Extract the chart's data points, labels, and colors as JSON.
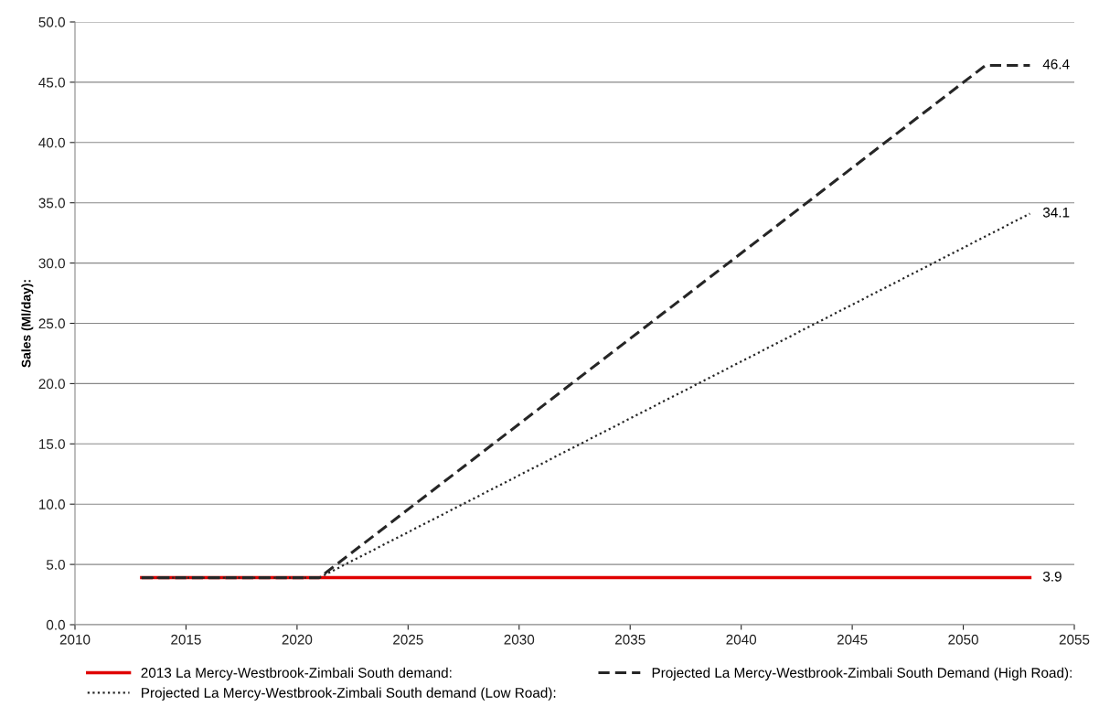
{
  "chart_data": {
    "type": "line",
    "ylabel": "Sales (Ml/day):",
    "xlim": [
      2010,
      2055
    ],
    "xticks": [
      2010,
      2015,
      2020,
      2025,
      2030,
      2035,
      2040,
      2045,
      2050,
      2055
    ],
    "ylim": [
      0,
      50
    ],
    "yticks": [
      {
        "value": 0,
        "label": "0.0"
      },
      {
        "value": 5,
        "label": "5.0"
      },
      {
        "value": 10,
        "label": "10.0"
      },
      {
        "value": 15,
        "label": "15.0"
      },
      {
        "value": 20,
        "label": "20.0"
      },
      {
        "value": 25,
        "label": "25.0"
      },
      {
        "value": 30,
        "label": "30.0"
      },
      {
        "value": 35,
        "label": "35.0"
      },
      {
        "value": 40,
        "label": "40.0"
      },
      {
        "value": 45,
        "label": "45.0"
      },
      {
        "value": 50,
        "label": "50.0"
      }
    ],
    "grid": "y",
    "legend": "bottom",
    "series": [
      {
        "name": "2013 La Mercy-Westbrook-Zimbali South demand:",
        "color": "#e00000",
        "line_style": "solid",
        "x": [
          2013,
          2053
        ],
        "values": [
          3.9,
          3.9
        ],
        "value_labels": [
          null,
          "3.9"
        ]
      },
      {
        "name": "Projected La Mercy-Westbrook-Zimbali South Demand (High Road):",
        "color": "#262626",
        "line_style": "dashed",
        "x": [
          2013,
          2021,
          2051,
          2053
        ],
        "values": [
          3.9,
          3.9,
          46.4,
          46.4
        ],
        "value_labels": [
          null,
          null,
          null,
          "46.4"
        ]
      },
      {
        "name": "Projected La Mercy-Westbrook-Zimbali South demand (Low Road):",
        "color": "#262626",
        "line_style": "dotted",
        "x": [
          2013,
          2021,
          2053
        ],
        "values": [
          3.9,
          3.9,
          34.1
        ],
        "value_labels": [
          null,
          null,
          "34.1"
        ]
      }
    ]
  }
}
